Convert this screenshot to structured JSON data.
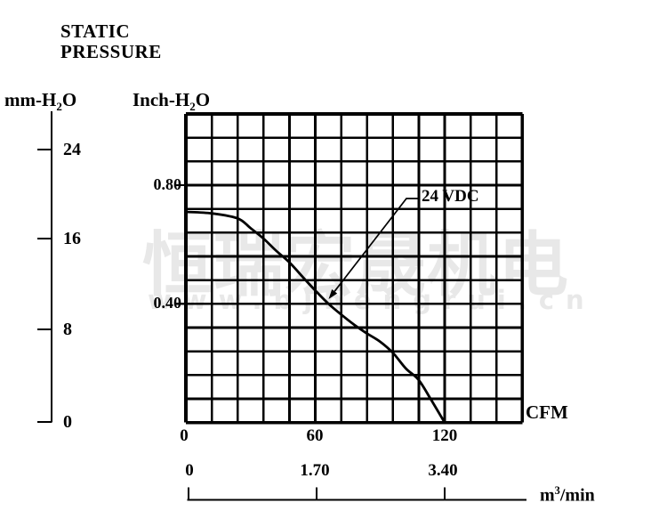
{
  "header": {
    "title_line1": "STATIC",
    "title_line2": "PRESSURE"
  },
  "units": {
    "mm_h2o": {
      "pre": "mm-H",
      "sub": "2",
      "post": "O"
    },
    "inch_h2o": {
      "pre": "Inch-H",
      "sub": "2",
      "post": "O"
    },
    "cfm": "CFM",
    "m3_min": {
      "pre": "m",
      "sup": "3",
      "post": "/min"
    }
  },
  "annotation": {
    "curve_label": "24 VDC"
  },
  "watermark": {
    "text_cn": "恒瑞宏晟机电",
    "text_url": "www.bjhengrui.cn",
    "color": "#e8e8e8"
  },
  "colors": {
    "ink": "#000000",
    "background": "#ffffff"
  },
  "chart_data": {
    "type": "line",
    "title": "Static Pressure vs Airflow, 24 VDC fan curve",
    "grid": {
      "cols": 13,
      "rows": 13,
      "on": true
    },
    "x_axis": {
      "label": "CFM",
      "tick_labels": [
        "0",
        "60",
        "120"
      ],
      "tick_values": [
        0,
        60,
        120
      ],
      "range": [
        0,
        156
      ]
    },
    "x_axis_secondary": {
      "label": "m3/min",
      "tick_labels": [
        "0",
        "1.70",
        "3.40"
      ],
      "tick_values": [
        0,
        1.7,
        3.4
      ],
      "range": [
        0,
        4.42
      ]
    },
    "y_axis": {
      "label": "Inch-H2O",
      "tick_labels": [
        "0.80",
        "0.40"
      ],
      "tick_values": [
        0.8,
        0.4
      ],
      "range": [
        0,
        1.04
      ]
    },
    "y_axis_secondary": {
      "label": "mm-H2O",
      "tick_labels": [
        "24",
        "16",
        "8",
        "0"
      ],
      "tick_values": [
        24,
        16,
        8,
        0
      ],
      "range": [
        0,
        26.4
      ]
    },
    "series": [
      {
        "name": "24 VDC",
        "x_cfm": [
          0,
          12,
          24,
          30,
          36,
          42,
          48,
          54,
          60,
          66,
          72,
          78,
          84,
          90,
          96,
          102,
          108,
          114,
          120
        ],
        "y_inch_h2o": [
          0.71,
          0.705,
          0.688,
          0.655,
          0.62,
          0.578,
          0.54,
          0.492,
          0.445,
          0.401,
          0.364,
          0.33,
          0.3,
          0.273,
          0.235,
          0.182,
          0.143,
          0.073,
          0.0
        ]
      }
    ],
    "legend_position": "annotation-inside-plot"
  }
}
